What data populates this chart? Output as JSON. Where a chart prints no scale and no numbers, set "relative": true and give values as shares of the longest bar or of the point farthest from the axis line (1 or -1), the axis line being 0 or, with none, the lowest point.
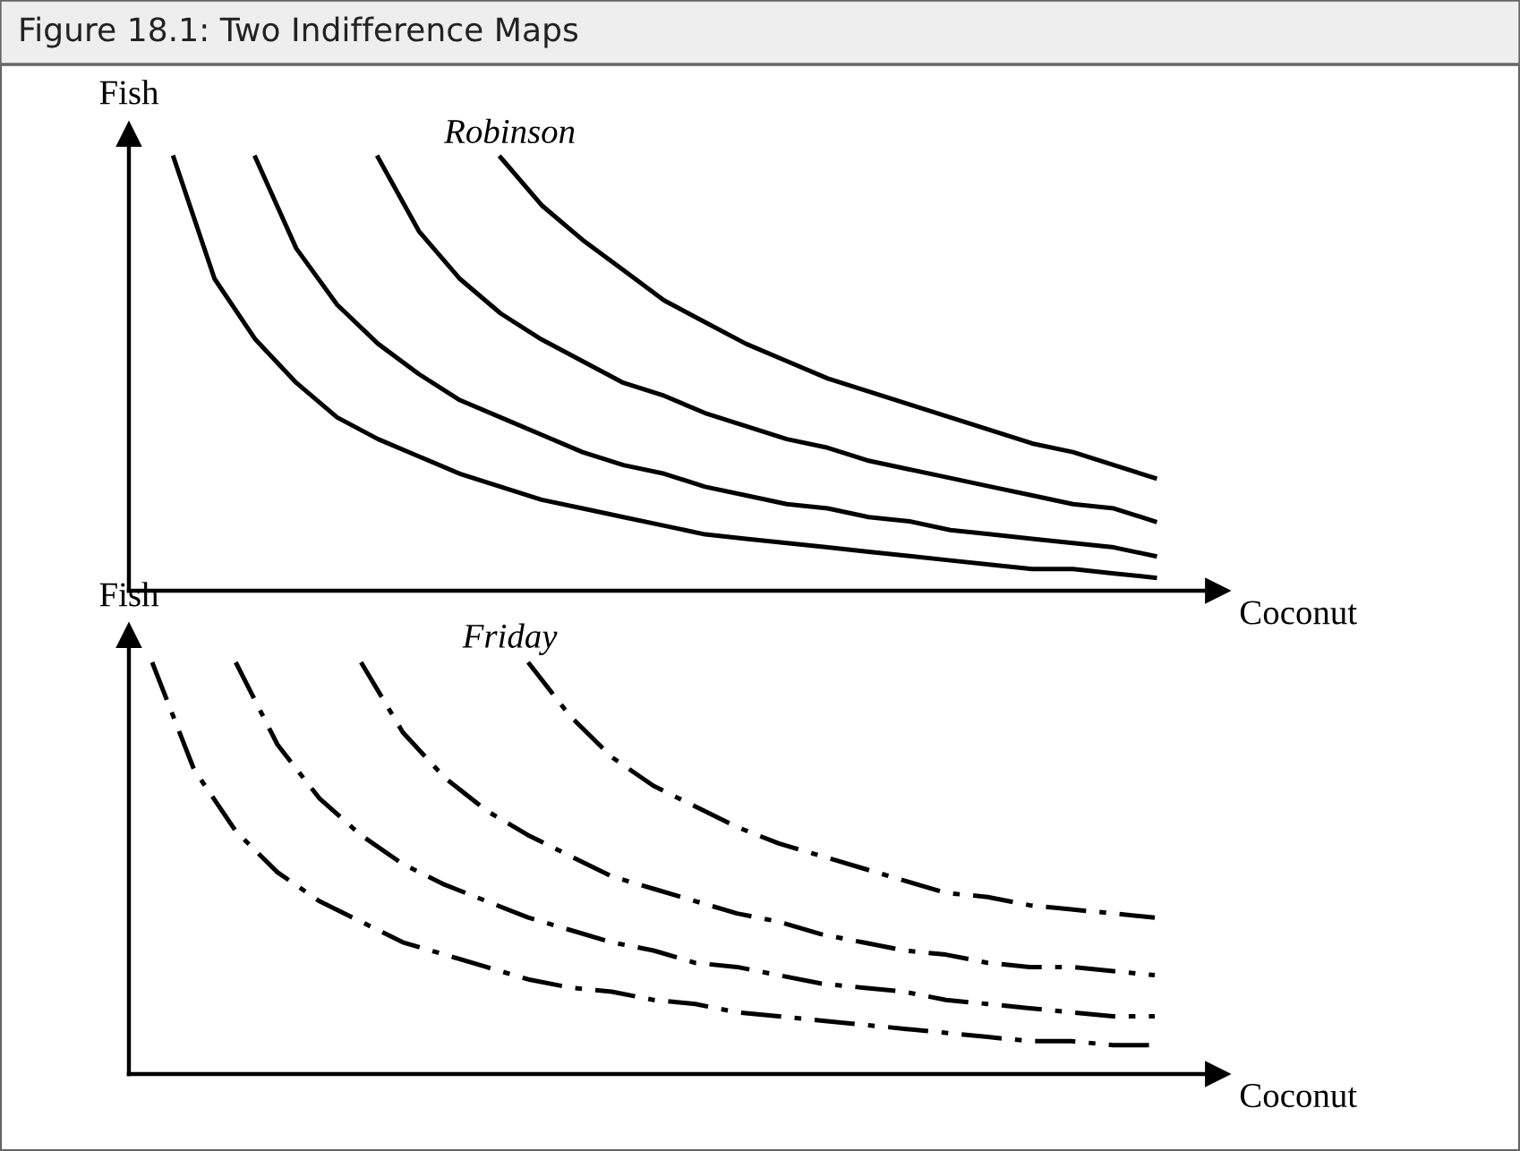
{
  "chart_data": [
    {
      "type": "line",
      "title": "Figure 18.1: Two Indifference Maps",
      "subtitle": "Robinson",
      "xlabel": "Coconut",
      "ylabel": "Fish",
      "relative": true,
      "line_style": "solid",
      "categories": [
        null,
        null,
        null,
        null,
        null,
        null,
        null,
        null,
        null,
        null,
        null,
        null,
        null,
        null,
        null,
        null,
        null,
        null,
        null,
        null,
        null,
        null,
        null,
        null,
        null
      ],
      "series": [
        {
          "color": "#000000",
          "values": [
            1,
            0.72,
            0.58,
            0.48,
            0.4,
            0.35,
            0.31,
            0.27,
            0.24,
            0.21,
            0.19,
            0.17,
            0.15,
            0.13,
            0.12,
            0.11,
            0.1,
            0.09,
            0.08,
            0.07,
            0.06,
            0.05,
            0.05,
            0.04,
            0.03
          ]
        },
        {
          "color": "#000000",
          "values": [
            null,
            null,
            1,
            0.79,
            0.66,
            0.57,
            0.5,
            0.44,
            0.4,
            0.36,
            0.32,
            0.29,
            0.27,
            0.24,
            0.22,
            0.2,
            0.19,
            0.17,
            0.16,
            0.14,
            0.13,
            0.12,
            0.11,
            0.1,
            0.08
          ]
        },
        {
          "color": "#000000",
          "values": [
            null,
            null,
            null,
            null,
            null,
            1,
            0.83,
            0.72,
            0.64,
            0.58,
            0.53,
            0.48,
            0.45,
            0.41,
            0.38,
            0.35,
            0.33,
            0.3,
            0.28,
            0.26,
            0.24,
            0.22,
            0.2,
            0.19,
            0.16
          ]
        },
        {
          "color": "#000000",
          "values": [
            null,
            null,
            null,
            null,
            null,
            null,
            null,
            null,
            1,
            0.89,
            0.81,
            0.74,
            0.67,
            0.62,
            0.57,
            0.53,
            0.49,
            0.46,
            0.43,
            0.4,
            0.37,
            0.34,
            0.32,
            0.29,
            0.26
          ]
        }
      ]
    },
    {
      "type": "line",
      "subtitle": "Friday",
      "xlabel": "Coconut",
      "ylabel": "Fish",
      "relative": true,
      "line_style": "dashdot",
      "categories": [
        null,
        null,
        null,
        null,
        null,
        null,
        null,
        null,
        null,
        null,
        null,
        null,
        null,
        null,
        null,
        null,
        null,
        null,
        null,
        null,
        null,
        null,
        null,
        null,
        null
      ],
      "series": [
        {
          "color": "#000000",
          "values": [
            1,
            0.74,
            0.59,
            0.49,
            0.42,
            0.37,
            0.32,
            0.29,
            0.26,
            0.23,
            0.21,
            0.2,
            0.18,
            0.17,
            0.15,
            0.14,
            0.13,
            0.12,
            0.11,
            0.1,
            0.09,
            0.08,
            0.08,
            0.07,
            0.07
          ]
        },
        {
          "color": "#000000",
          "values": [
            null,
            null,
            1,
            0.8,
            0.67,
            0.58,
            0.51,
            0.46,
            0.42,
            0.38,
            0.35,
            0.32,
            0.3,
            0.27,
            0.26,
            0.24,
            0.22,
            0.21,
            0.2,
            0.18,
            0.17,
            0.16,
            0.15,
            0.14,
            0.14
          ]
        },
        {
          "color": "#000000",
          "values": [
            null,
            null,
            null,
            null,
            null,
            1,
            0.83,
            0.72,
            0.64,
            0.58,
            0.53,
            0.48,
            0.45,
            0.42,
            0.39,
            0.37,
            0.34,
            0.32,
            0.3,
            0.29,
            0.27,
            0.26,
            0.26,
            0.25,
            0.24
          ]
        },
        {
          "color": "#000000",
          "values": [
            null,
            null,
            null,
            null,
            null,
            null,
            null,
            null,
            null,
            1,
            0.87,
            0.77,
            0.7,
            0.65,
            0.6,
            0.56,
            0.53,
            0.5,
            0.47,
            0.44,
            0.43,
            0.41,
            0.4,
            0.39,
            0.38
          ]
        }
      ]
    }
  ]
}
